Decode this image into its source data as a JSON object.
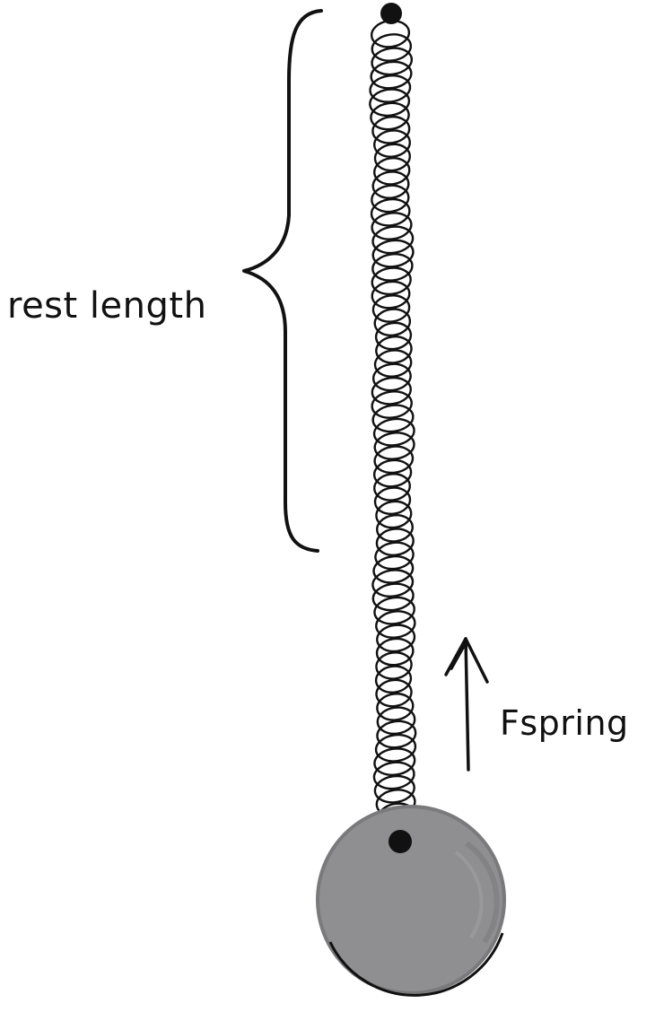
{
  "labels": {
    "rest_length": "rest length",
    "force": "Fspring"
  },
  "colors": {
    "ink": "#111111",
    "bob_fill": "#8f8f92",
    "bob_shade": "#7d7d80",
    "background": "#ffffff"
  },
  "icons": {
    "anchor": "anchor-dot-icon",
    "arrow": "up-arrow-icon"
  }
}
